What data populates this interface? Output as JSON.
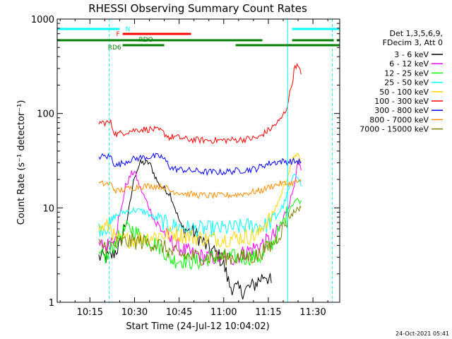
{
  "chart_data": {
    "type": "line",
    "title": "RHESSI Observing Summary Count Rates",
    "xlabel": "Start Time (24-Jul-12 10:04:02)",
    "ylabel": "Count Rate (s⁻¹ detector⁻¹)",
    "y_scale": "log",
    "ylim": [
      1,
      1000
    ],
    "xlim_min_after_start": [
      0,
      95
    ],
    "x_ticks": [
      "10:15",
      "10:30",
      "10:45",
      "11:00",
      "11:15",
      "11:30"
    ],
    "x_tick_minutes": [
      11,
      26,
      41,
      56,
      71,
      86
    ],
    "y_ticks": [
      "1",
      "10",
      "100",
      "1000"
    ],
    "y_tick_values": [
      1,
      10,
      100,
      1000
    ],
    "timestamp": "24-Oct-2021 05:41",
    "legend": {
      "header": [
        "Det 1,3,5,6,9,",
        "FDecim 3, Att 0"
      ],
      "placement": "right"
    },
    "flags": [
      {
        "label": "N",
        "color": "#00ffff",
        "segments": [
          [
            0,
            21
          ],
          [
            79,
            95
          ]
        ]
      },
      {
        "label": "F",
        "color": "#ff0000",
        "segments": [
          [
            22,
            45
          ]
        ]
      },
      {
        "label": "RDO",
        "color": "#008000",
        "segments": [
          [
            0,
            55
          ],
          [
            36,
            69
          ],
          [
            79,
            93
          ],
          [
            94,
            95
          ]
        ]
      },
      {
        "label": "RD6",
        "color": "#008000",
        "segments": [
          [
            22,
            36
          ],
          [
            60,
            95
          ]
        ]
      }
    ],
    "vlines": [
      {
        "minute": 17.5,
        "color": "#00ffff",
        "style": "dashed"
      },
      {
        "minute": 77.5,
        "color": "#00ffff",
        "style": "solid"
      },
      {
        "minute": 92.5,
        "color": "#00ffff",
        "style": "dashed"
      }
    ],
    "series": [
      {
        "name": "3 - 6 keV",
        "color": "#000000",
        "x": [
          14,
          18,
          21,
          24,
          26,
          28,
          31,
          34,
          38,
          42,
          46,
          50,
          54,
          56,
          58,
          62,
          66,
          70,
          72
        ],
        "y": [
          3,
          3,
          4,
          9,
          22,
          30,
          30,
          18,
          14,
          6.0,
          5.5,
          4.0,
          3.2,
          2.5,
          1.5,
          1.3,
          1.5,
          2.0,
          1.6
        ]
      },
      {
        "name": "6 - 12 keV",
        "color": "#ff00ff",
        "x": [
          14,
          17,
          19,
          21,
          23,
          25,
          26,
          28,
          31,
          33,
          36,
          38,
          40,
          43,
          46,
          50,
          54,
          56,
          60,
          64,
          68,
          71,
          75,
          77,
          79,
          81,
          82
        ],
        "y": [
          4,
          4,
          5,
          8,
          17,
          23,
          24,
          16,
          10,
          7,
          5.5,
          4.5,
          4.0,
          3.5,
          3.2,
          3.0,
          3.0,
          2.8,
          3.0,
          3.5,
          4.0,
          4.5,
          6,
          9,
          14,
          30,
          25
        ]
      },
      {
        "name": "12 - 25 keV",
        "color": "#00ff00",
        "x": [
          14,
          17,
          19,
          21,
          23,
          25,
          28,
          31,
          34,
          36,
          37,
          39,
          42,
          45,
          48,
          50,
          51,
          54,
          58,
          62,
          66,
          69,
          70,
          73,
          76,
          78,
          80,
          82
        ],
        "y": [
          3,
          3,
          4,
          5,
          6,
          6,
          5,
          4.5,
          4,
          3.5,
          3.0,
          2.8,
          2.8,
          2.7,
          2.7,
          2.8,
          3.0,
          3.0,
          3.0,
          3.0,
          3.0,
          3.0,
          3.5,
          4.5,
          7,
          10,
          12,
          12
        ]
      },
      {
        "name": "25 - 50 keV",
        "color": "#00ffff",
        "x": [
          14,
          18,
          19,
          22,
          26,
          30,
          32,
          34,
          36,
          38,
          40,
          45,
          50,
          55,
          60,
          65,
          67,
          70,
          72,
          74,
          76,
          78,
          80,
          81,
          82
        ],
        "y": [
          6,
          6.5,
          8,
          9,
          9.5,
          9,
          8,
          7.5,
          7.0,
          6.5,
          6.5,
          6.0,
          6.0,
          6.0,
          6.2,
          6.5,
          6.5,
          6.5,
          7.0,
          8.5,
          10.5,
          16,
          23,
          22,
          17
        ]
      },
      {
        "name": "50 - 100 keV",
        "color": "#ffd700",
        "x": [
          14,
          18,
          19,
          20,
          24,
          28,
          32,
          35,
          37,
          38,
          39,
          44,
          50,
          56,
          62,
          67,
          68,
          69,
          72,
          75,
          77,
          79,
          80,
          81,
          82
        ],
        "y": [
          6,
          6.5,
          5,
          4.5,
          4.6,
          4.8,
          5.0,
          5.2,
          5.2,
          5.3,
          5.4,
          5.0,
          4.7,
          4.7,
          4.9,
          5.1,
          5.4,
          6.5,
          8,
          13,
          20,
          30,
          38,
          35,
          30
        ]
      },
      {
        "name": "100 - 300 keV",
        "color": "#ff0000",
        "x": [
          14,
          18,
          19,
          20,
          24,
          28,
          32,
          35,
          37,
          38,
          39,
          44,
          50,
          56,
          62,
          67,
          68,
          69,
          72,
          75,
          77,
          79,
          80,
          81,
          82
        ],
        "y": [
          80,
          80,
          65,
          60,
          65,
          68,
          68,
          65,
          58,
          55,
          57,
          53,
          52,
          52,
          53,
          55,
          56,
          60,
          70,
          85,
          110,
          210,
          330,
          310,
          260
        ]
      },
      {
        "name": "300 - 800 keV",
        "color": "#0000ff",
        "x": [
          14,
          18,
          19,
          20,
          24,
          28,
          32,
          35,
          37,
          38,
          39,
          44,
          50,
          56,
          62,
          67,
          68,
          69,
          72,
          75,
          78,
          81,
          82
        ],
        "y": [
          35,
          35,
          30,
          28,
          32,
          34,
          35,
          35,
          30,
          27,
          26,
          25,
          24,
          24,
          25,
          26,
          27,
          28,
          30,
          31,
          31,
          31,
          31
        ]
      },
      {
        "name": "800 - 7000 keV",
        "color": "#ff8c00",
        "x": [
          14,
          18,
          19,
          20,
          24,
          28,
          32,
          35,
          37,
          38,
          39,
          44,
          50,
          56,
          62,
          67,
          68,
          69,
          72,
          75,
          78,
          81,
          82
        ],
        "y": [
          18,
          18,
          16,
          15,
          16,
          17,
          17,
          17,
          16,
          15,
          15,
          14,
          13.5,
          13.5,
          14,
          15,
          15,
          15.5,
          17,
          18,
          18,
          19,
          19
        ]
      },
      {
        "name": "7000 - 15000 keV",
        "color": "#808000",
        "x": [
          14,
          18,
          19,
          20,
          24,
          28,
          32,
          35,
          37,
          38,
          39,
          44,
          50,
          56,
          62,
          67,
          68,
          69,
          72,
          75,
          78,
          81,
          82
        ],
        "y": [
          4,
          4,
          4,
          4.2,
          4.4,
          4.4,
          4.2,
          4.0,
          3.6,
          3.4,
          3.3,
          3.1,
          3.0,
          3.0,
          3.0,
          3.1,
          3.2,
          3.5,
          4.0,
          5.5,
          8,
          10,
          10
        ]
      }
    ]
  }
}
